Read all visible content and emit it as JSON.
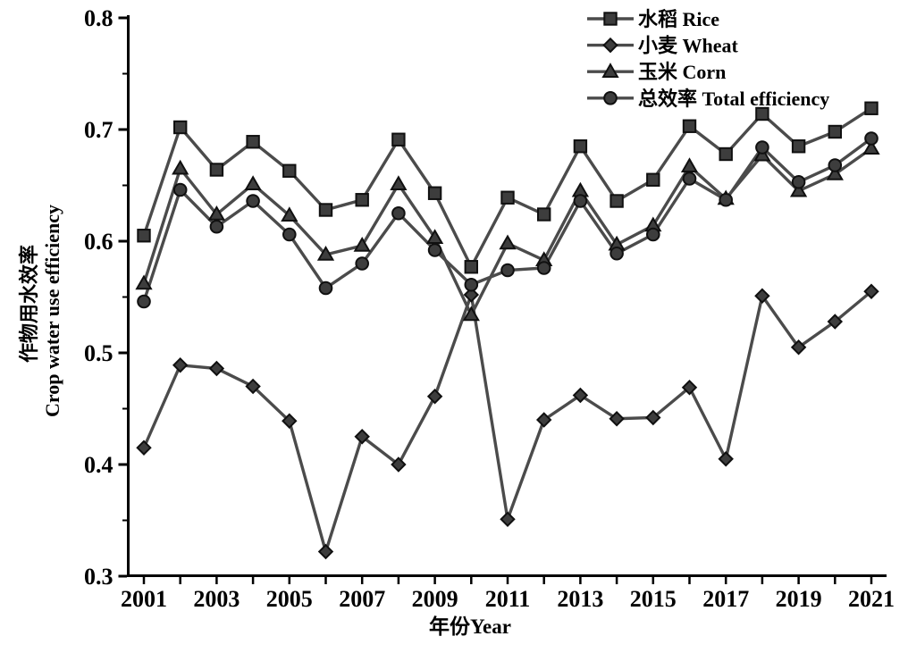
{
  "page": {
    "background": "#ffffff"
  },
  "chart_data": {
    "type": "line",
    "title": "",
    "xlabel": "年份Year",
    "ylabel_lines": [
      "作物用水效率",
      "Crop water use efficiency"
    ],
    "x": [
      2001,
      2002,
      2003,
      2004,
      2005,
      2006,
      2007,
      2008,
      2009,
      2010,
      2011,
      2012,
      2013,
      2014,
      2015,
      2016,
      2017,
      2018,
      2019,
      2020,
      2021
    ],
    "xtick_labels": [
      "2001",
      "2003",
      "2005",
      "2007",
      "2009",
      "2011",
      "2013",
      "2015",
      "2017",
      "2019",
      "2021"
    ],
    "xtick_label_step": 2,
    "ylim": [
      0.3,
      0.8
    ],
    "ytick_step": 0.1,
    "ytick_minor_step": 0.05,
    "ytick_labels": [
      "0.3",
      "0.4",
      "0.5",
      "0.6",
      "0.7",
      "0.8"
    ],
    "grid": false,
    "legend_position": "top-right",
    "series": [
      {
        "name": "水稻 Rice",
        "marker": "square",
        "values": [
          0.605,
          0.702,
          0.664,
          0.689,
          0.663,
          0.628,
          0.637,
          0.691,
          0.643,
          0.577,
          0.639,
          0.624,
          0.685,
          0.636,
          0.655,
          0.703,
          0.678,
          0.714,
          0.685,
          0.698,
          0.719
        ]
      },
      {
        "name": "小麦 Wheat",
        "marker": "diamond",
        "values": [
          0.415,
          0.489,
          0.486,
          0.47,
          0.439,
          0.322,
          0.425,
          0.4,
          0.461,
          0.552,
          0.351,
          0.44,
          0.462,
          0.441,
          0.442,
          0.469,
          0.405,
          0.551,
          0.505,
          0.528,
          0.555
        ]
      },
      {
        "name": "玉米 Corn",
        "marker": "triangle",
        "values": [
          0.562,
          0.665,
          0.624,
          0.651,
          0.623,
          0.588,
          0.596,
          0.651,
          0.603,
          0.534,
          0.598,
          0.583,
          0.645,
          0.597,
          0.614,
          0.667,
          0.638,
          0.677,
          0.645,
          0.66,
          0.683
        ]
      },
      {
        "name": "总效率 Total efficiency",
        "marker": "circle",
        "values": [
          0.546,
          0.646,
          0.613,
          0.636,
          0.606,
          0.558,
          0.58,
          0.625,
          0.592,
          0.561,
          0.574,
          0.576,
          0.636,
          0.589,
          0.606,
          0.656,
          0.637,
          0.684,
          0.653,
          0.668,
          0.692
        ]
      }
    ],
    "colors": {
      "line": "#4b4b4b",
      "marker_fill": "#3d3d3d",
      "marker_edge": "#101010",
      "axis": "#000000",
      "text": "#000000",
      "background": "#ffffff"
    }
  }
}
